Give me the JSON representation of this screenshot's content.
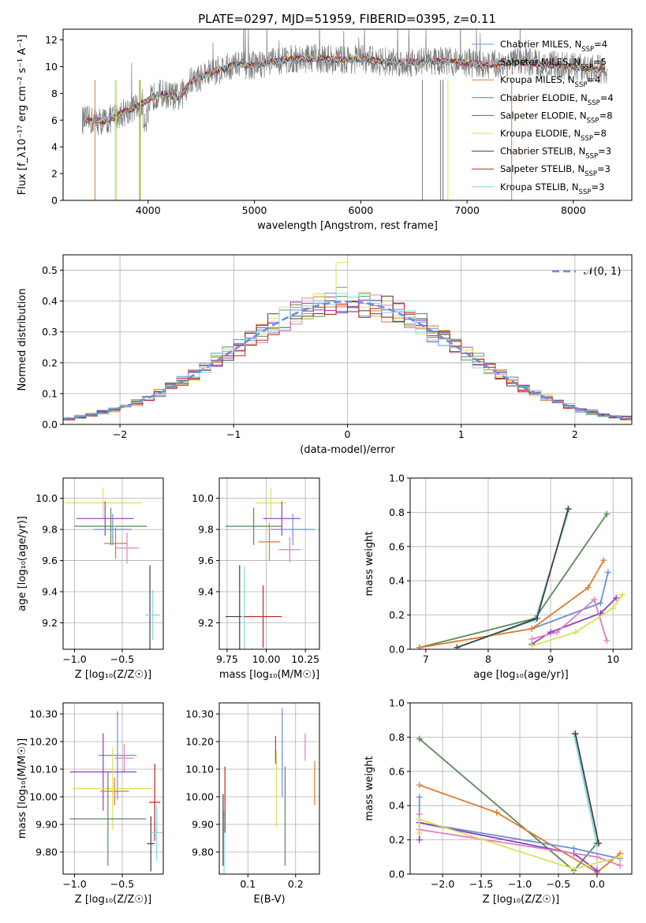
{
  "title": "PLATE=0297, MJD=51959, FIBERID=0395, z=0.11",
  "colors": {
    "blue": "#6a8fdb",
    "orange": "#e07a2c",
    "green": "#5a8a5a",
    "purple": "#8a3fbf",
    "pink": "#e07fbf",
    "yellow": "#dde05a",
    "dark": "#404040",
    "red": "#c82020",
    "cyan": "#7fd8e0",
    "spectrum": "#808080",
    "grid": "#b0b0b0"
  },
  "chart_data": [
    {
      "id": "spectrum",
      "type": "line",
      "xlabel": "wavelength [Angstrom, rest frame]",
      "ylabel": "Flux [f_λ10⁻¹⁷ erg cm⁻² s⁻¹ A⁻¹]",
      "xlim": [
        3200,
        8550
      ],
      "ylim": [
        0,
        12.8
      ],
      "xticks": [
        4000,
        5000,
        6000,
        7000,
        8000
      ],
      "yticks": [
        0,
        2,
        4,
        6,
        8,
        10,
        12
      ],
      "grid": false,
      "legend_position": "right",
      "legend": [
        {
          "label": "Chabrier MILES, N_SSP=4",
          "color": "blue"
        },
        {
          "label": "Salpeter MILES, N_SSP=5",
          "color": "pink"
        },
        {
          "label": "Kroupa MILES, N_SSP=4",
          "color": "orange"
        },
        {
          "label": "Chabrier ELODIE, N_SSP=4",
          "color": "green"
        },
        {
          "label": "Salpeter ELODIE, N_SSP=8",
          "color": "purple"
        },
        {
          "label": "Kroupa ELODIE, N_SSP=8",
          "color": "yellow"
        },
        {
          "label": "Chabrier STELIB, N_SSP=3",
          "color": "dark"
        },
        {
          "label": "Salpeter STELIB, N_SSP=3",
          "color": "red"
        },
        {
          "label": "Kroupa STELIB, N_SSP=3",
          "color": "cyan"
        }
      ],
      "continuum": [
        [
          3400,
          6.0
        ],
        [
          3600,
          5.9
        ],
        [
          3800,
          6.7
        ],
        [
          3900,
          7.0
        ],
        [
          4000,
          7.5
        ],
        [
          4100,
          8.0
        ],
        [
          4300,
          7.7
        ],
        [
          4400,
          8.9
        ],
        [
          4600,
          9.6
        ],
        [
          4800,
          10.1
        ],
        [
          5000,
          10.1
        ],
        [
          5200,
          10.4
        ],
        [
          5400,
          10.6
        ],
        [
          5600,
          10.6
        ],
        [
          5800,
          10.5
        ],
        [
          6000,
          10.6
        ],
        [
          6200,
          10.4
        ],
        [
          6400,
          10.3
        ],
        [
          6600,
          10.4
        ],
        [
          6800,
          10.4
        ],
        [
          7000,
          10.3
        ],
        [
          7200,
          10.1
        ],
        [
          7400,
          10.3
        ],
        [
          7600,
          10.3
        ],
        [
          7800,
          10.1
        ],
        [
          8000,
          10.0
        ],
        [
          8200,
          9.8
        ],
        [
          8300,
          9.8
        ]
      ],
      "spectrum_range": [
        3380,
        8320
      ],
      "model_drops": [
        {
          "x": 3500,
          "color": "orange"
        },
        {
          "x": 3690,
          "color": "cyan"
        },
        {
          "x": 3700,
          "color": "yellow"
        },
        {
          "x": 3920,
          "color": "green"
        },
        {
          "x": 3930,
          "color": "yellow"
        },
        {
          "x": 6580,
          "color": "spectrum"
        },
        {
          "x": 6750,
          "color": "spectrum"
        },
        {
          "x": 6770,
          "color": "spectrum"
        },
        {
          "x": 6780,
          "color": "yellow"
        },
        {
          "x": 6820,
          "color": "yellow"
        },
        {
          "x": 7420,
          "color": "orange"
        }
      ]
    },
    {
      "id": "residuals",
      "type": "bar",
      "xlabel": "(data-model)/error",
      "ylabel": "Normed distribution",
      "xlim": [
        -2.5,
        2.5
      ],
      "ylim": [
        0,
        0.55
      ],
      "xticks": [
        -2,
        -1,
        0,
        1,
        2
      ],
      "yticks": [
        0.0,
        0.1,
        0.2,
        0.3,
        0.4,
        0.5
      ],
      "grid": true,
      "legend_position": "top-right",
      "legend": [
        {
          "label": "𝒩(0, 1)",
          "color": "blue",
          "style": "dashed"
        }
      ],
      "bin_width": 0.1,
      "series_colors": [
        "blue",
        "orange",
        "green",
        "purple",
        "pink",
        "yellow",
        "dark",
        "red",
        "cyan"
      ]
    },
    {
      "id": "age-vs-z",
      "type": "scatter",
      "xlabel": "Z [log₁₀(Z/Z☉)]",
      "ylabel": "age  [log₁₀(age/yr)]",
      "xlim": [
        -1.12,
        -0.07
      ],
      "ylim": [
        9.03,
        10.13
      ],
      "xticks": [
        -1.0,
        -0.5
      ],
      "yticks": [
        9.2,
        9.4,
        9.6,
        9.8,
        10.0
      ],
      "grid": true,
      "points": [
        {
          "color": "yellow",
          "x": -0.7,
          "xerr": 0.4,
          "y": 9.97,
          "yerr": 0.1
        },
        {
          "color": "purple",
          "x": -0.68,
          "xerr": 0.3,
          "y": 9.87,
          "yerr": 0.11
        },
        {
          "color": "green",
          "x": -0.62,
          "xerr": 0.38,
          "y": 9.82,
          "yerr": 0.12
        },
        {
          "color": "blue",
          "x": -0.6,
          "xerr": 0.2,
          "y": 9.8,
          "yerr": 0.1
        },
        {
          "color": "pink",
          "x": -0.45,
          "xerr": 0.12,
          "y": 9.68,
          "yerr": 0.1
        },
        {
          "color": "orange",
          "x": -0.57,
          "xerr": 0.12,
          "y": 9.71,
          "yerr": 0.1
        },
        {
          "color": "dark",
          "x": -0.21,
          "xerr": 0.01,
          "y": 9.25,
          "yerr": 0.32
        },
        {
          "color": "cyan",
          "x": -0.18,
          "xerr": 0.08,
          "y": 9.25,
          "yerr": 0.16
        }
      ]
    },
    {
      "id": "age-vs-mass",
      "type": "scatter",
      "xlabel": "mass [log₁₀(M/M☉)]",
      "ylabel": "",
      "xlim": [
        9.7,
        10.34
      ],
      "ylim": [
        9.03,
        10.13
      ],
      "xticks": [
        9.75,
        10.0,
        10.25
      ],
      "yticks": [
        9.2,
        9.4,
        9.6,
        9.8,
        10.0
      ],
      "grid": true,
      "points": [
        {
          "color": "yellow",
          "x": 10.03,
          "xerr": 0.1,
          "y": 9.97,
          "yerr": 0.1
        },
        {
          "color": "purple",
          "x": 10.1,
          "xerr": 0.12,
          "y": 9.87,
          "yerr": 0.11
        },
        {
          "color": "green",
          "x": 9.92,
          "xerr": 0.18,
          "y": 9.82,
          "yerr": 0.12
        },
        {
          "color": "blue",
          "x": 10.17,
          "xerr": 0.14,
          "y": 9.8,
          "yerr": 0.1
        },
        {
          "color": "orange",
          "x": 10.02,
          "xerr": 0.07,
          "y": 9.72,
          "yerr": 0.12
        },
        {
          "color": "pink",
          "x": 10.15,
          "xerr": 0.07,
          "y": 9.67,
          "yerr": 0.08
        },
        {
          "color": "dark",
          "x": 9.83,
          "xerr": 0.09,
          "y": 9.24,
          "yerr": 0.33
        },
        {
          "color": "cyan",
          "x": 9.86,
          "xerr": 0.02,
          "y": 9.24,
          "yerr": 0.32
        },
        {
          "color": "red",
          "x": 9.98,
          "xerr": 0.12,
          "y": 9.24,
          "yerr": 0.2
        }
      ]
    },
    {
      "id": "weight-vs-age",
      "type": "line",
      "xlabel": "age  [log₁₀(age/yr)]",
      "ylabel": "mass weight",
      "xlim": [
        6.75,
        10.3
      ],
      "ylim": [
        0,
        1.0
      ],
      "xticks": [
        7,
        8,
        9,
        10
      ],
      "yticks": [
        0.0,
        0.2,
        0.4,
        0.6,
        0.8,
        1.0
      ],
      "grid": true,
      "series": [
        {
          "color": "blue",
          "points": [
            [
              8.7,
              0.12
            ],
            [
              9.8,
              0.27
            ],
            [
              9.92,
              0.45
            ]
          ]
        },
        {
          "color": "green",
          "points": [
            [
              6.9,
              0.01
            ],
            [
              8.75,
              0.18
            ],
            [
              9.9,
              0.79
            ]
          ]
        },
        {
          "color": "orange",
          "points": [
            [
              6.9,
              0.01
            ],
            [
              8.7,
              0.12
            ],
            [
              9.6,
              0.36
            ],
            [
              9.85,
              0.52
            ]
          ]
        },
        {
          "color": "purple",
          "points": [
            [
              8.7,
              0.03
            ],
            [
              9.0,
              0.1
            ],
            [
              9.8,
              0.21
            ],
            [
              10.05,
              0.3
            ]
          ]
        },
        {
          "color": "pink",
          "points": [
            [
              8.7,
              0.06
            ],
            [
              9.1,
              0.1
            ],
            [
              9.7,
              0.29
            ],
            [
              9.9,
              0.05
            ]
          ]
        },
        {
          "color": "yellow",
          "points": [
            [
              8.7,
              0.02
            ],
            [
              9.4,
              0.1
            ],
            [
              10.0,
              0.24
            ],
            [
              10.15,
              0.32
            ]
          ]
        },
        {
          "color": "cyan",
          "points": [
            [
              7.5,
              0.01
            ],
            [
              8.75,
              0.17
            ],
            [
              9.3,
              0.82
            ]
          ]
        },
        {
          "color": "dark",
          "points": [
            [
              7.5,
              0.01
            ],
            [
              8.78,
              0.18
            ],
            [
              9.28,
              0.82
            ]
          ]
        }
      ]
    },
    {
      "id": "mass-vs-z",
      "type": "scatter",
      "xlabel": "Z [log₁₀(Z/Z☉)]",
      "ylabel": "mass [log₁₀(M/M☉)]",
      "xlim": [
        -1.12,
        -0.07
      ],
      "ylim": [
        9.72,
        10.34
      ],
      "xticks": [
        -1.0,
        -0.5
      ],
      "yticks": [
        9.8,
        9.9,
        10.0,
        10.1,
        10.2,
        10.3
      ],
      "grid": true,
      "points": [
        {
          "color": "blue",
          "x": -0.55,
          "xerr": 0.2,
          "y": 10.15,
          "yerr": 0.16
        },
        {
          "color": "pink",
          "x": -0.48,
          "xerr": 0.1,
          "y": 10.14,
          "yerr": 0.05
        },
        {
          "color": "purple",
          "x": -0.7,
          "xerr": 0.35,
          "y": 10.09,
          "yerr": 0.14
        },
        {
          "color": "orange",
          "x": -0.58,
          "xerr": 0.15,
          "y": 10.02,
          "yerr": 0.05
        },
        {
          "color": "yellow",
          "x": -0.6,
          "xerr": 0.42,
          "y": 10.03,
          "yerr": 0.15
        },
        {
          "color": "green",
          "x": -0.65,
          "xerr": 0.4,
          "y": 9.92,
          "yerr": 0.17
        },
        {
          "color": "red",
          "x": -0.16,
          "xerr": 0.06,
          "y": 9.98,
          "yerr": 0.14
        },
        {
          "color": "dark",
          "x": -0.2,
          "xerr": 0.04,
          "y": 9.83,
          "yerr": 0.1
        },
        {
          "color": "cyan",
          "x": -0.14,
          "xerr": 0.06,
          "y": 9.87,
          "yerr": 0.1
        }
      ]
    },
    {
      "id": "mass-vs-ebv",
      "type": "scatter",
      "xlabel": "E(B-V)",
      "ylabel": "",
      "xlim": [
        0.04,
        0.25
      ],
      "ylim": [
        9.72,
        10.34
      ],
      "xticks": [
        0.1,
        0.2
      ],
      "yticks": [
        9.8,
        9.9,
        10.0,
        10.1,
        10.2,
        10.3
      ],
      "grid": true,
      "points": [
        {
          "color": "blue",
          "x": 0.172,
          "xerr": 0.001,
          "y": 10.16,
          "yerr": 0.16
        },
        {
          "color": "purple",
          "x": 0.158,
          "xerr": 0.001,
          "y": 10.17,
          "yerr": 0.05
        },
        {
          "color": "pink",
          "x": 0.22,
          "xerr": 0.001,
          "y": 10.18,
          "yerr": 0.05
        },
        {
          "color": "orange",
          "x": 0.24,
          "xerr": 0.001,
          "y": 10.05,
          "yerr": 0.08
        },
        {
          "color": "yellow",
          "x": 0.16,
          "xerr": 0.001,
          "y": 10.03,
          "yerr": 0.14
        },
        {
          "color": "green",
          "x": 0.178,
          "xerr": 0.001,
          "y": 9.93,
          "yerr": 0.18
        },
        {
          "color": "red",
          "x": 0.052,
          "xerr": 0.001,
          "y": 9.99,
          "yerr": 0.12
        },
        {
          "color": "dark",
          "x": 0.048,
          "xerr": 0.001,
          "y": 9.88,
          "yerr": 0.13
        },
        {
          "color": "cyan",
          "x": 0.05,
          "xerr": 0.001,
          "y": 9.83,
          "yerr": 0.12
        }
      ]
    },
    {
      "id": "weight-vs-z",
      "type": "line",
      "xlabel": "Z [log₁₀(Z/Z☉)]",
      "ylabel": "mass weight",
      "xlim": [
        -2.42,
        0.45
      ],
      "ylim": [
        0,
        1.0
      ],
      "xticks": [
        -2.0,
        -1.5,
        -1.0,
        -0.5,
        0.0
      ],
      "yticks": [
        0.0,
        0.2,
        0.4,
        0.6,
        0.8,
        1.0
      ],
      "grid": true,
      "series": [
        {
          "color": "green",
          "points": [
            [
              -2.3,
              0.79
            ],
            [
              -0.3,
              0.02
            ],
            [
              0.0,
              0.18
            ]
          ]
        },
        {
          "color": "orange",
          "points": [
            [
              -2.3,
              0.52
            ],
            [
              -1.3,
              0.36
            ],
            [
              0.0,
              0.01
            ],
            [
              0.3,
              0.12
            ]
          ]
        },
        {
          "color": "blue",
          "points": [
            [
              -2.3,
              0.45
            ],
            [
              -2.3,
              0.3
            ],
            [
              -0.3,
              0.15
            ],
            [
              0.3,
              0.09
            ]
          ]
        },
        {
          "color": "purple",
          "points": [
            [
              -2.3,
              0.2
            ],
            [
              -2.3,
              0.3
            ],
            [
              -0.3,
              0.12
            ],
            [
              0.0,
              0.02
            ]
          ]
        },
        {
          "color": "pink",
          "points": [
            [
              -2.3,
              0.35
            ],
            [
              -2.3,
              0.26
            ],
            [
              0.0,
              0.1
            ],
            [
              0.3,
              0.05
            ]
          ]
        },
        {
          "color": "yellow",
          "points": [
            [
              -2.3,
              0.24
            ],
            [
              -2.3,
              0.32
            ],
            [
              -0.3,
              0.03
            ],
            [
              0.3,
              0.1
            ]
          ]
        },
        {
          "color": "cyan",
          "points": [
            [
              -0.3,
              0.82
            ],
            [
              0.0,
              0.17
            ]
          ]
        },
        {
          "color": "dark",
          "points": [
            [
              -0.28,
              0.82
            ],
            [
              0.02,
              0.18
            ]
          ]
        }
      ]
    }
  ]
}
